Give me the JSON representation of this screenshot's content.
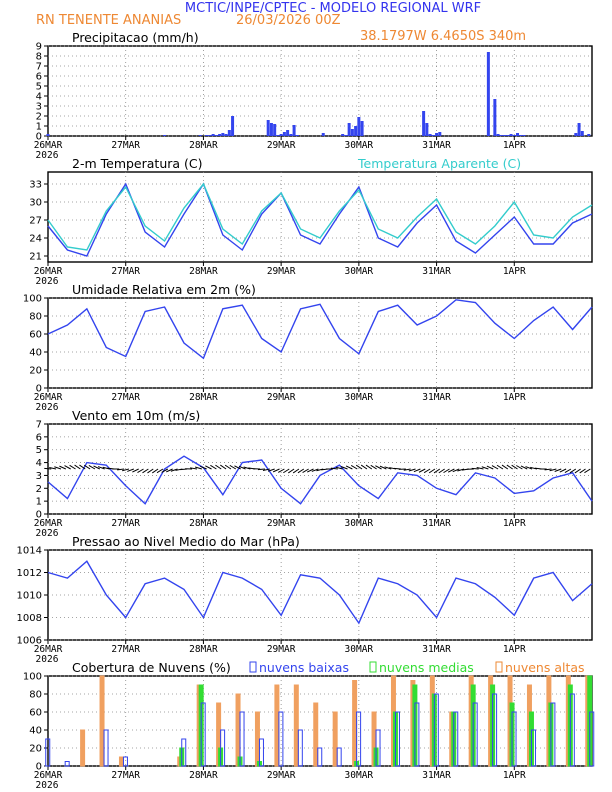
{
  "header": {
    "title": "MCTIC/INPE/CPTEC - MODELO REGIONAL WRF",
    "station": "RN TENENTE ANANIAS",
    "run_time": "26/03/2026 00Z",
    "coords": "38.1797W 6.4650S 340m"
  },
  "colors": {
    "blue": "#3344ee",
    "cyan": "#33cccc",
    "orange": "#ee8833",
    "green": "#33dd33",
    "orange_bar": "#f0a060",
    "black": "#000000"
  },
  "time_axis": {
    "labels": [
      "26MAR",
      "27MAR",
      "28MAR",
      "29MAR",
      "30MAR",
      "31MAR",
      "1APR"
    ],
    "year": "2026",
    "hours_total": 168
  },
  "chart_data": [
    {
      "id": "precip",
      "type": "bar",
      "title": "Precipitacao (mm/h)",
      "ylim": [
        0,
        9
      ],
      "yticks": [
        0,
        1,
        2,
        3,
        4,
        5,
        6,
        7,
        8,
        9
      ],
      "x_hours": [
        0,
        36,
        47,
        49,
        50,
        51,
        52,
        53,
        54,
        55,
        56,
        57,
        68,
        69,
        70,
        71,
        72,
        73,
        74,
        75,
        76,
        77,
        85,
        91,
        92,
        93,
        94,
        95,
        96,
        97,
        116,
        117,
        118,
        119,
        120,
        121,
        136,
        138,
        139,
        140,
        141,
        142,
        143,
        144,
        145,
        146,
        147,
        163,
        164,
        165,
        167
      ],
      "values": [
        0.2,
        0.1,
        0.1,
        0.1,
        0.1,
        0.2,
        0.1,
        0.2,
        0.3,
        0.2,
        0.6,
        2.0,
        1.6,
        1.3,
        1.2,
        0.1,
        0.2,
        0.4,
        0.6,
        0.2,
        1.1,
        0.1,
        0.3,
        0.2,
        0.1,
        1.3,
        0.7,
        1.0,
        1.9,
        1.5,
        2.5,
        1.3,
        0.2,
        0.1,
        0.3,
        0.4,
        8.4,
        3.7,
        0.2,
        0.1,
        0.1,
        0.1,
        0.2,
        0.1,
        0.3,
        0.1,
        0.1,
        0.3,
        1.3,
        0.5,
        0.2
      ]
    },
    {
      "id": "temperature",
      "type": "line",
      "title": "2-m Temperatura (C)",
      "legend2": "Temperatura Aparente (C)",
      "ylim": [
        20,
        35
      ],
      "yticks": [
        21,
        24,
        27,
        30,
        33
      ],
      "x_hours": [
        0,
        6,
        12,
        18,
        24,
        30,
        36,
        42,
        48,
        54,
        60,
        66,
        72,
        78,
        84,
        90,
        96,
        102,
        108,
        114,
        120,
        126,
        132,
        138,
        144,
        150,
        156,
        162,
        168
      ],
      "series": [
        {
          "name": "2-m Temperatura (C)",
          "values": [
            26,
            22,
            21,
            28,
            33,
            25,
            22.5,
            28,
            33,
            24.5,
            22,
            28,
            31.5,
            24.5,
            23,
            28,
            32.5,
            24,
            22.5,
            26.5,
            29.5,
            23.5,
            21.5,
            24.5,
            27.5,
            23,
            23,
            26.5,
            28
          ]
        },
        {
          "name": "Temperatura Aparente (C)",
          "values": [
            27,
            22.5,
            22,
            28.5,
            32.5,
            26,
            23.5,
            29,
            33,
            25.5,
            23,
            28.5,
            31.5,
            25.5,
            24,
            28.5,
            32,
            25.5,
            24,
            27.5,
            30.5,
            25,
            23,
            26,
            30,
            24.5,
            24,
            27.5,
            29.5
          ]
        }
      ]
    },
    {
      "id": "humidity",
      "type": "line",
      "title": "Umidade Relativa em 2m (%)",
      "ylim": [
        0,
        100
      ],
      "yticks": [
        0,
        20,
        40,
        60,
        80,
        100
      ],
      "x_hours": [
        0,
        6,
        12,
        18,
        24,
        30,
        36,
        42,
        48,
        54,
        60,
        66,
        72,
        78,
        84,
        90,
        96,
        102,
        108,
        114,
        120,
        126,
        132,
        138,
        144,
        150,
        156,
        162,
        168
      ],
      "values": [
        60,
        70,
        88,
        45,
        35,
        85,
        90,
        50,
        33,
        88,
        92,
        55,
        40,
        88,
        93,
        55,
        38,
        85,
        92,
        70,
        80,
        98,
        95,
        72,
        55,
        75,
        90,
        65,
        90
      ]
    },
    {
      "id": "wind",
      "type": "line",
      "title": "Vento em 10m (m/s)",
      "ylim": [
        0,
        7
      ],
      "yticks": [
        0,
        1,
        2,
        3,
        4,
        5,
        6,
        7
      ],
      "x_hours": [
        0,
        6,
        12,
        18,
        24,
        30,
        36,
        42,
        48,
        54,
        60,
        66,
        72,
        78,
        84,
        90,
        96,
        102,
        108,
        114,
        120,
        126,
        132,
        138,
        144,
        150,
        156,
        162,
        168
      ],
      "values": [
        2.5,
        1.2,
        4.0,
        3.8,
        2.2,
        0.8,
        3.5,
        4.5,
        3.6,
        1.5,
        4.0,
        4.2,
        2.0,
        0.8,
        3.0,
        3.8,
        2.2,
        1.2,
        3.2,
        3.0,
        2.0,
        1.5,
        3.2,
        2.8,
        1.6,
        1.8,
        2.8,
        3.2,
        1.0
      ],
      "barbs": "wind barbs along ~3.5 m/s"
    },
    {
      "id": "pressure",
      "type": "line",
      "title": "Pressao ao Nivel Medio do Mar (hPa)",
      "ylim": [
        1006,
        1014
      ],
      "yticks": [
        1006,
        1008,
        1010,
        1012,
        1014
      ],
      "x_hours": [
        0,
        6,
        12,
        18,
        24,
        30,
        36,
        42,
        48,
        54,
        60,
        66,
        72,
        78,
        84,
        90,
        96,
        102,
        108,
        114,
        120,
        126,
        132,
        138,
        144,
        150,
        156,
        162,
        168
      ],
      "values": [
        1012.0,
        1011.5,
        1013.0,
        1010.0,
        1008.0,
        1011.0,
        1011.5,
        1010.5,
        1008.0,
        1012.0,
        1011.5,
        1010.5,
        1008.2,
        1011.8,
        1011.5,
        1010.0,
        1007.5,
        1011.5,
        1011.0,
        1010.0,
        1008.0,
        1011.5,
        1011.0,
        1009.8,
        1008.2,
        1011.5,
        1012.0,
        1009.5,
        1011.0
      ]
    },
    {
      "id": "clouds",
      "type": "bar",
      "title": "Cobertura de Nuvens (%)",
      "legend": [
        "nuvens baixas",
        "nuvens medias",
        "nuvens altas"
      ],
      "ylim": [
        0,
        100
      ],
      "yticks": [
        0,
        20,
        40,
        60,
        80,
        100
      ],
      "x_hours": [
        0,
        6,
        12,
        18,
        24,
        30,
        36,
        42,
        48,
        54,
        60,
        66,
        72,
        78,
        84,
        90,
        96,
        102,
        108,
        114,
        120,
        126,
        132,
        138,
        144,
        150,
        156,
        162,
        168
      ],
      "series": [
        {
          "name": "nuvens baixas",
          "values": [
            30,
            5,
            0,
            40,
            10,
            0,
            0,
            30,
            70,
            40,
            60,
            30,
            60,
            40,
            20,
            20,
            60,
            40,
            60,
            70,
            80,
            60,
            70,
            80,
            60,
            40,
            70,
            80,
            60
          ]
        },
        {
          "name": "nuvens medias",
          "values": [
            0,
            0,
            0,
            0,
            0,
            0,
            0,
            20,
            90,
            20,
            10,
            5,
            0,
            0,
            0,
            0,
            5,
            20,
            60,
            90,
            80,
            60,
            90,
            90,
            70,
            60,
            70,
            90,
            100
          ]
        },
        {
          "name": "nuvens altas",
          "values": [
            0,
            0,
            40,
            100,
            10,
            0,
            0,
            10,
            90,
            70,
            80,
            60,
            90,
            90,
            70,
            60,
            95,
            60,
            100,
            95,
            100,
            60,
            100,
            100,
            100,
            90,
            100,
            100,
            100
          ]
        }
      ]
    }
  ]
}
